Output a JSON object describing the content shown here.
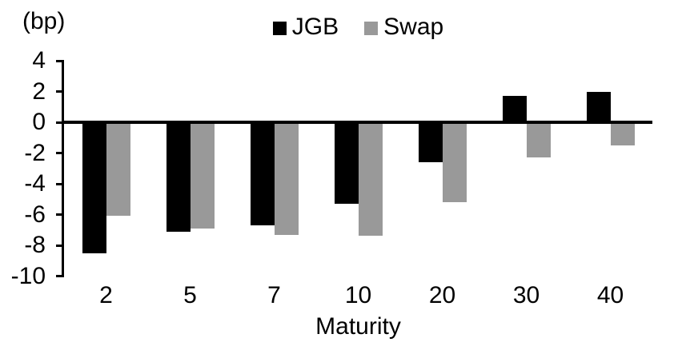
{
  "chart_data": {
    "type": "bar",
    "unit_label": "(bp)",
    "xlabel": "Maturity",
    "categories": [
      "2",
      "5",
      "7",
      "10",
      "20",
      "30",
      "40"
    ],
    "series": [
      {
        "name": "JGB",
        "color": "#000000",
        "values": [
          -8.5,
          -7.1,
          -6.7,
          -5.3,
          -2.6,
          1.7,
          2.0
        ]
      },
      {
        "name": "Swap",
        "color": "#999999",
        "values": [
          -6.1,
          -6.9,
          -7.3,
          -7.4,
          -5.2,
          -2.3,
          -1.5
        ]
      }
    ],
    "yticks": [
      4,
      2,
      0,
      -2,
      -4,
      -6,
      -8,
      -10
    ],
    "ylim": [
      -10,
      4
    ],
    "legend_position": "top-center",
    "grid": false,
    "axis_color": "#000000",
    "background": "#ffffff"
  }
}
